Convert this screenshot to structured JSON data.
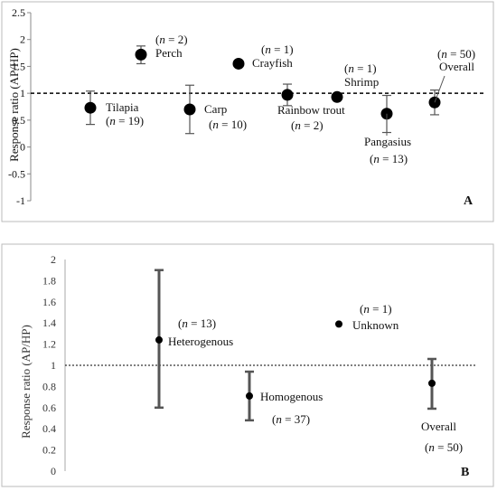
{
  "chart_data": [
    {
      "type": "scatter",
      "panel_label": "A",
      "ylabel": "Response ratio (AP/HP)",
      "ylim": [
        -1,
        2.5
      ],
      "yticks": [
        "-1",
        "-0.5",
        "0",
        "0.5",
        "1",
        "1.5",
        "2",
        "2.5"
      ],
      "reference_line": 1,
      "points": [
        {
          "label": "Tilapia",
          "n_text": "n",
          "n_value": "19",
          "value": 0.73,
          "ci": [
            0.42,
            1.04
          ]
        },
        {
          "label": "Perch",
          "n_text": "n",
          "n_value": "2",
          "value": 1.72,
          "ci": [
            1.55,
            1.88
          ]
        },
        {
          "label": "Carp",
          "n_text": "n",
          "n_value": "10",
          "value": 0.7,
          "ci": [
            0.25,
            1.15
          ]
        },
        {
          "label": "Crayfish",
          "n_text": "n",
          "n_value": "1",
          "value": 1.55,
          "ci": null
        },
        {
          "label": "Rainbow trout",
          "n_text": "n",
          "n_value": "2",
          "value": 0.97,
          "ci": [
            0.77,
            1.17
          ]
        },
        {
          "label": "Shrimp",
          "n_text": "n",
          "n_value": "1",
          "value": 0.93,
          "ci": null
        },
        {
          "label": "Pangasius",
          "n_text": "n",
          "n_value": "13",
          "value": 0.62,
          "ci": [
            0.27,
            0.96
          ]
        },
        {
          "label": "Overall",
          "n_text": "n",
          "n_value": "50",
          "value": 0.83,
          "ci": [
            0.6,
            1.06
          ]
        }
      ]
    },
    {
      "type": "scatter",
      "panel_label": "B",
      "ylabel": "Response ratio (AP/HP)",
      "ylim": [
        0,
        2
      ],
      "yticks": [
        "0",
        "0.2",
        "0.4",
        "0.6",
        "0.8",
        "1",
        "1.2",
        "1.4",
        "1.6",
        "1.8",
        "2"
      ],
      "reference_line": 1,
      "points": [
        {
          "label": "Heterogenous",
          "n_text": "n",
          "n_value": "13",
          "value": 1.24,
          "ci": [
            0.6,
            1.9
          ]
        },
        {
          "label": "Homogenous",
          "n_text": "n",
          "n_value": "37",
          "value": 0.71,
          "ci": [
            0.48,
            0.94
          ]
        },
        {
          "label": "Unknown",
          "n_text": "n",
          "n_value": "1",
          "value": 1.39,
          "ci": null
        },
        {
          "label": "Overall",
          "n_text": "n",
          "n_value": "50",
          "value": 0.83,
          "ci": [
            0.59,
            1.06
          ]
        }
      ]
    }
  ]
}
